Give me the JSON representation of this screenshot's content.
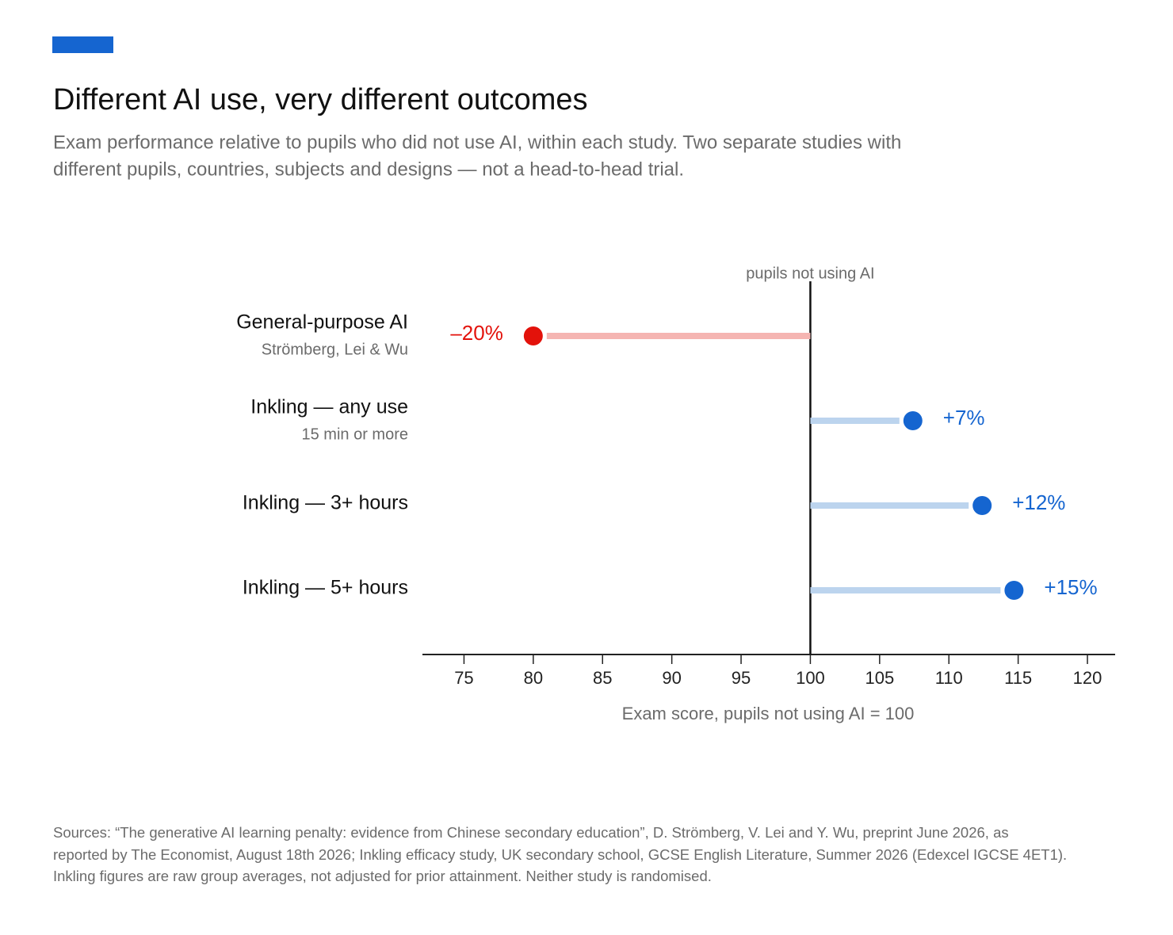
{
  "chart_data": {
    "type": "lollipop",
    "title": "Different AI use, very different outcomes",
    "subtitle": [
      "Exam performance relative to pupils who did not use AI, within each study. Two separate studies with",
      "different pupils, countries, subjects and designs — not a head-to-head trial."
    ],
    "categories": [
      "General-purpose AI",
      "Inkling — any use",
      "Inkling — 3+ hours",
      "Inkling — 5+ hours"
    ],
    "sublabels": [
      "Strömberg, Lei & Wu",
      "15 min or more",
      null,
      null
    ],
    "values": [
      80,
      107.4,
      112.4,
      114.7
    ],
    "value_labels": [
      "–20%",
      "+7%",
      "+12%",
      "+15%"
    ],
    "colors": [
      "#e3120b",
      "#1565d0",
      "#1565d0",
      "#1565d0"
    ],
    "stem_colors": [
      "#f5b5b2",
      "#bcd4ee",
      "#bcd4ee",
      "#bcd4ee"
    ],
    "reference": {
      "value": 100,
      "label": "pupils not using AI"
    },
    "xlim": [
      72,
      122
    ],
    "xticks": [
      75,
      80,
      85,
      90,
      95,
      100,
      105,
      110,
      115,
      120
    ],
    "xlabel": "Exam score, pupils not using AI = 100",
    "sources": [
      "Sources: “The generative AI learning penalty: evidence from Chinese secondary education”, D. Strömberg, V. Lei and Y. Wu, preprint June 2026, as",
      "reported by The Economist, August 18th 2026; Inkling efficacy study, UK secondary school, GCSE English Literature, Summer 2026 (Edexcel IGCSE 4ET1).",
      "Inkling figures are raw group averages, not adjusted for prior attainment. Neither study is randomised."
    ]
  }
}
